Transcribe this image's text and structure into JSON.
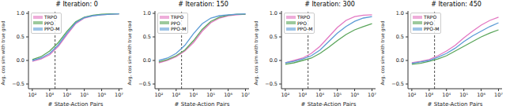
{
  "chart_data": [
    {
      "type": "line",
      "title": "# Iteration: 0",
      "x_label": "# State-Action Pairs",
      "y_label": "Avg. cos sim with true grad",
      "x": [
        100,
        316,
        1000,
        3162,
        10000,
        31623,
        100000,
        316228,
        1000000,
        3162278,
        10000000
      ],
      "series": [
        {
          "name": "TRPO",
          "color": "#e377c2",
          "values": [
            -0.02,
            0.03,
            0.12,
            0.3,
            0.55,
            0.78,
            0.9,
            0.95,
            0.97,
            0.98,
            0.99
          ]
        },
        {
          "name": "PPO",
          "color": "#5aa55a",
          "values": [
            0.02,
            0.08,
            0.2,
            0.38,
            0.62,
            0.82,
            0.92,
            0.96,
            0.98,
            0.99,
            0.99
          ]
        },
        {
          "name": "PPO-M",
          "color": "#5b9bd5",
          "values": [
            0.0,
            0.05,
            0.15,
            0.33,
            0.58,
            0.8,
            0.91,
            0.95,
            0.97,
            0.98,
            0.99
          ]
        }
      ],
      "xlim": [
        60,
        16000000
      ],
      "ylim": [
        -0.6,
        1.05
      ],
      "xticks": [
        {
          "value": 100,
          "label": "10²"
        },
        {
          "value": 1000,
          "label": "10³"
        },
        {
          "value": 10000,
          "label": "10⁴"
        },
        {
          "value": 100000,
          "label": "10⁵"
        },
        {
          "value": 1000000,
          "label": "10⁶"
        },
        {
          "value": 10000000,
          "label": "10⁷"
        }
      ],
      "yticks": [
        {
          "value": -0.5,
          "label": "−0.5"
        },
        {
          "value": 0,
          "label": "0.0"
        },
        0.5,
        {
          "value": 1,
          "label": "1.0"
        }
      ],
      "log": "x",
      "grid": false,
      "legend": "upper left",
      "reference_x": 2048
    },
    {
      "type": "line",
      "title": "# Iteration: 150",
      "x_label": "# State-Action Pairs",
      "y_label": "Avg. cos sim with true grad",
      "x": [
        100,
        316,
        1000,
        3162,
        10000,
        31623,
        100000,
        316228,
        1000000,
        3162278,
        10000000
      ],
      "series": [
        {
          "name": "TRPO",
          "color": "#e377c2",
          "values": [
            -0.05,
            0.0,
            0.08,
            0.2,
            0.38,
            0.62,
            0.8,
            0.9,
            0.95,
            0.97,
            0.98
          ]
        },
        {
          "name": "PPO",
          "color": "#5aa55a",
          "values": [
            -0.03,
            0.02,
            0.1,
            0.22,
            0.42,
            0.66,
            0.83,
            0.92,
            0.96,
            0.98,
            0.98
          ]
        },
        {
          "name": "PPO-M",
          "color": "#5b9bd5",
          "values": [
            0.0,
            0.05,
            0.15,
            0.32,
            0.57,
            0.78,
            0.9,
            0.95,
            0.97,
            0.98,
            0.99
          ]
        }
      ],
      "xlim": [
        60,
        16000000
      ],
      "ylim": [
        -0.6,
        1.05
      ],
      "xticks": [
        {
          "value": 100,
          "label": "10²"
        },
        {
          "value": 1000,
          "label": "10³"
        },
        {
          "value": 10000,
          "label": "10⁴"
        },
        {
          "value": 100000,
          "label": "10⁵"
        },
        {
          "value": 1000000,
          "label": "10⁶"
        },
        {
          "value": 10000000,
          "label": "10⁷"
        }
      ],
      "yticks": [
        {
          "value": -0.5,
          "label": "−0.5"
        },
        {
          "value": 0,
          "label": "0.0"
        },
        0.5,
        {
          "value": 1,
          "label": "1.0"
        }
      ],
      "log": "x",
      "grid": false,
      "legend": "upper left",
      "reference_x": 2048
    },
    {
      "type": "line",
      "title": "# Iteration: 300",
      "x_label": "# State-Action Pairs",
      "y_label": "Avg. cos sim with true grad",
      "x": [
        100,
        316,
        1000,
        3162,
        10000,
        31623,
        100000,
        316228,
        1000000,
        3162278,
        10000000
      ],
      "series": [
        {
          "name": "TRPO",
          "color": "#e377c2",
          "values": [
            -0.05,
            0.0,
            0.05,
            0.15,
            0.3,
            0.5,
            0.7,
            0.85,
            0.93,
            0.96,
            0.97
          ]
        },
        {
          "name": "PPO",
          "color": "#5aa55a",
          "values": [
            -0.08,
            -0.05,
            0.0,
            0.05,
            0.15,
            0.28,
            0.42,
            0.55,
            0.65,
            0.72,
            0.78
          ]
        },
        {
          "name": "PPO-M",
          "color": "#5b9bd5",
          "values": [
            -0.05,
            -0.02,
            0.03,
            0.1,
            0.22,
            0.4,
            0.58,
            0.72,
            0.83,
            0.9,
            0.93
          ]
        }
      ],
      "xlim": [
        60,
        16000000
      ],
      "ylim": [
        -0.6,
        1.05
      ],
      "xticks": [
        {
          "value": 100,
          "label": "10²"
        },
        {
          "value": 1000,
          "label": "10³"
        },
        {
          "value": 10000,
          "label": "10⁴"
        },
        {
          "value": 100000,
          "label": "10⁵"
        },
        {
          "value": 1000000,
          "label": "10⁶"
        },
        {
          "value": 10000000,
          "label": "10⁷"
        }
      ],
      "yticks": [
        {
          "value": -0.5,
          "label": "−0.5"
        },
        {
          "value": 0,
          "label": "0.0"
        },
        0.5,
        {
          "value": 1,
          "label": "1.0"
        }
      ],
      "log": "x",
      "grid": false,
      "legend": "upper left",
      "reference_x": 2048
    },
    {
      "type": "line",
      "title": "# Iteration: 450",
      "x_label": "# State-Action Pairs",
      "y_label": "Avg. cos sim with true grad",
      "x": [
        100,
        316,
        1000,
        3162,
        10000,
        31623,
        100000,
        316228,
        1000000,
        3162278,
        10000000
      ],
      "series": [
        {
          "name": "TRPO",
          "color": "#e377c2",
          "values": [
            -0.05,
            -0.02,
            0.02,
            0.1,
            0.2,
            0.32,
            0.48,
            0.62,
            0.75,
            0.85,
            0.92
          ]
        },
        {
          "name": "PPO",
          "color": "#5aa55a",
          "values": [
            -0.08,
            -0.06,
            -0.02,
            0.03,
            0.1,
            0.2,
            0.3,
            0.4,
            0.5,
            0.58,
            0.65
          ]
        },
        {
          "name": "PPO-M",
          "color": "#5b9bd5",
          "values": [
            -0.06,
            -0.03,
            0.0,
            0.07,
            0.15,
            0.26,
            0.4,
            0.52,
            0.62,
            0.72,
            0.8
          ]
        }
      ],
      "xlim": [
        60,
        16000000
      ],
      "ylim": [
        -0.6,
        1.05
      ],
      "xticks": [
        {
          "value": 100,
          "label": "10²"
        },
        {
          "value": 1000,
          "label": "10³"
        },
        {
          "value": 10000,
          "label": "10⁴"
        },
        {
          "value": 100000,
          "label": "10⁵"
        },
        {
          "value": 1000000,
          "label": "10⁶"
        },
        {
          "value": 10000000,
          "label": "10⁷"
        }
      ],
      "yticks": [
        {
          "value": -0.5,
          "label": "−0.5"
        },
        {
          "value": 0,
          "label": "0.0"
        },
        0.5,
        {
          "value": 1,
          "label": "1.0"
        }
      ],
      "log": "x",
      "grid": false,
      "legend": "upper left",
      "reference_x": 2048
    }
  ]
}
